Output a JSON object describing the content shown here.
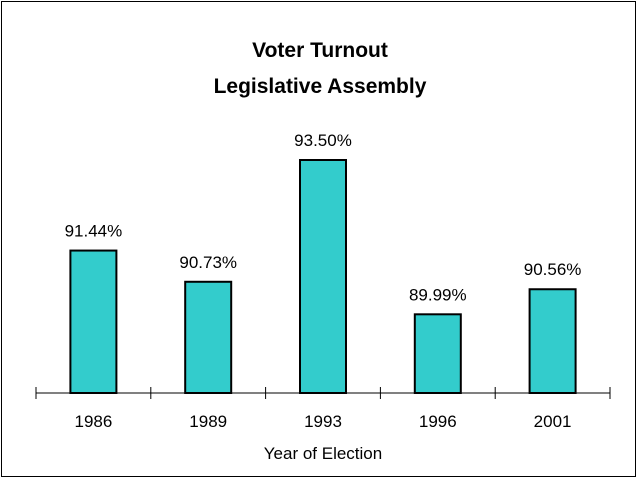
{
  "chart_data": {
    "type": "bar",
    "title": [
      "Voter Turnout",
      "Legislative Assembly"
    ],
    "xlabel": "Year of Election",
    "categories": [
      "1986",
      "1989",
      "1993",
      "1996",
      "2001"
    ],
    "values": [
      91.44,
      90.73,
      93.5,
      89.99,
      90.56
    ],
    "value_labels": [
      "91.44%",
      "90.73%",
      "93.50%",
      "89.99%",
      "90.56%"
    ],
    "ylim": [
      88.2,
      93.5
    ],
    "bar_color": "#33cccc"
  }
}
